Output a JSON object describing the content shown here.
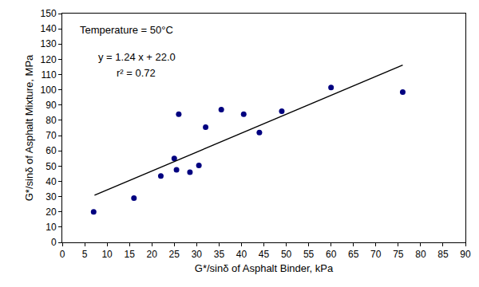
{
  "chart_data": {
    "type": "scatter",
    "x_label": "G*/sinδ of Asphalt Binder, kPa",
    "y_label": "G*/sinδ of Asphalt Mixture, MPa",
    "annotations": [
      "Temperature = 50°C",
      "y = 1.24 x + 22.0",
      "r² = 0.72"
    ],
    "xlim": [
      0,
      90
    ],
    "xticks": [
      0,
      5,
      10,
      15,
      20,
      25,
      30,
      35,
      40,
      45,
      50,
      55,
      60,
      65,
      70,
      75,
      80,
      85,
      90
    ],
    "ylim": [
      0,
      150
    ],
    "yticks": [
      0,
      10,
      20,
      30,
      40,
      50,
      60,
      70,
      80,
      90,
      100,
      110,
      120,
      130,
      140,
      150
    ],
    "grid": false,
    "series": [
      {
        "type": "scatter",
        "marker": "circle",
        "color": "#000080",
        "x": [
          7,
          16,
          22,
          25,
          25.5,
          26,
          28.5,
          30.5,
          32,
          35.5,
          40.5,
          44,
          49,
          60,
          76
        ],
        "values": [
          20,
          29,
          43.5,
          55,
          47.5,
          84,
          46,
          50.5,
          75.5,
          87,
          84,
          72,
          86,
          101.5,
          98.5
        ]
      },
      {
        "type": "line",
        "line_style": "solid",
        "color": "#000000",
        "x": [
          7.2,
          76
        ],
        "values": [
          30.9,
          116.2
        ]
      }
    ]
  }
}
